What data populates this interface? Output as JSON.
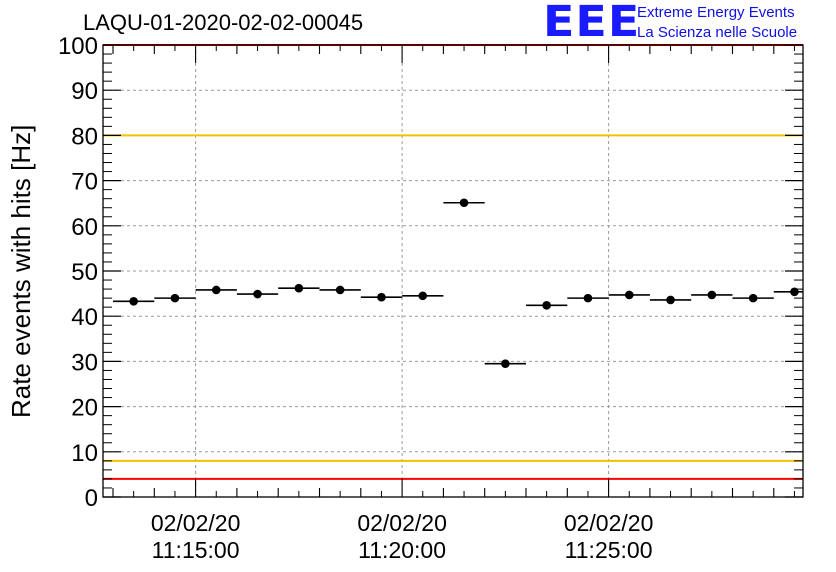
{
  "logo": {
    "mark": "EEE",
    "line1": "Extreme Energy Events",
    "line2": "La Scienza nelle Scuole",
    "color": "#1a1aff"
  },
  "chart_data": {
    "type": "scatter",
    "title": "LAQU-01-2020-02-02-00045",
    "xlabel": "",
    "ylabel": "Rate events with hits [Hz]",
    "ylim": [
      0,
      100
    ],
    "yticks": [
      0,
      10,
      20,
      30,
      40,
      50,
      60,
      70,
      80,
      90,
      100
    ],
    "xtick_labels": [
      {
        "date": "02/02/20",
        "time": "11:15:00"
      },
      {
        "date": "02/02/20",
        "time": "11:20:00"
      },
      {
        "date": "02/02/20",
        "time": "11:25:00"
      }
    ],
    "x_range_minutes": [
      0,
      17
    ],
    "bin_width_minutes": 1,
    "grid": true,
    "series": [
      {
        "marker": "circle",
        "color": "#000000",
        "x_minutes": [
          0.5,
          1.5,
          2.5,
          3.5,
          4.5,
          5.5,
          6.5,
          7.5,
          8.5,
          9.5,
          10.5,
          11.5,
          12.5,
          13.5,
          14.5,
          15.5,
          16.5
        ],
        "values": [
          43.3,
          44.0,
          45.8,
          44.9,
          46.2,
          45.8,
          44.2,
          44.5,
          65.1,
          29.5,
          42.4,
          44.0,
          44.7,
          43.6,
          44.7,
          44.0,
          45.4
        ]
      }
    ],
    "reference_lines": [
      {
        "value": 100,
        "color": "#ff0000"
      },
      {
        "value": 80,
        "color": "#f2c200"
      },
      {
        "value": 8,
        "color": "#f2c200"
      },
      {
        "value": 4,
        "color": "#ff0000"
      }
    ]
  }
}
